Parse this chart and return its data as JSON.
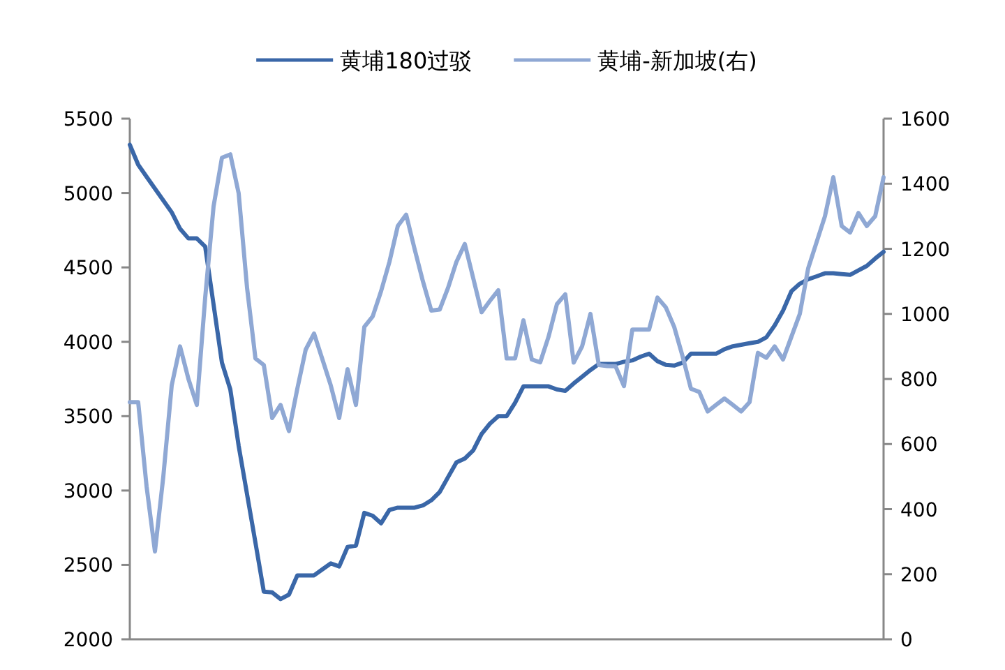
{
  "chart_data": {
    "type": "line",
    "categories": [
      null,
      null,
      null,
      null,
      null,
      null,
      null,
      null,
      null,
      null,
      null,
      null,
      null,
      null,
      null,
      null,
      null,
      null,
      null,
      null,
      null,
      null,
      null,
      null,
      null,
      null,
      null,
      null,
      null,
      null,
      null,
      null,
      null,
      null,
      null,
      null,
      null,
      null,
      null,
      null,
      null,
      null,
      null,
      null,
      null,
      null,
      null,
      null,
      null,
      null,
      null,
      null,
      null,
      null,
      null,
      null,
      null,
      null,
      null,
      null,
      null,
      null,
      null,
      null,
      null,
      null,
      null,
      null,
      null,
      null,
      null,
      null,
      null,
      null,
      null,
      null,
      null,
      null,
      null,
      null,
      null,
      null,
      null,
      null,
      null,
      null,
      null,
      null,
      null,
      null,
      null
    ],
    "series": [
      {
        "name": "黄埔180过驳",
        "color": "#3a67a8",
        "values": [
          5325,
          5190,
          5110,
          5030,
          4950,
          4870,
          4760,
          4695,
          4695,
          4640,
          4250,
          3860,
          3680,
          3300,
          2975,
          2650,
          2320,
          2315,
          2270,
          2300,
          2430,
          2430,
          2430,
          2470,
          2510,
          2490,
          2620,
          2630,
          2850,
          2830,
          2780,
          2870,
          2885,
          2885,
          2885,
          2900,
          2935,
          2990,
          3090,
          3190,
          3215,
          3270,
          3380,
          3450,
          3500,
          3500,
          3590,
          3700,
          3700,
          3700,
          3700,
          3680,
          3670,
          3720,
          3765,
          3810,
          3850,
          3850,
          3850,
          3865,
          3875,
          3900,
          3920,
          3870,
          3845,
          3840,
          3860,
          3920,
          3920,
          3920,
          3920,
          3950,
          3970,
          3980,
          3990,
          4000,
          4030,
          4110,
          4210,
          4340,
          4390,
          4420,
          4440,
          4460,
          4460,
          4455,
          4450,
          4480,
          4510,
          4560,
          4605
        ]
      },
      {
        "name": "黄埔-新加坡(右)",
        "color": "#8fa8d4",
        "axis": "y2",
        "values": [
          729,
          729,
          470,
          270,
          500,
          780,
          900,
          800,
          720,
          1050,
          1330,
          1480,
          1490,
          1370,
          1080,
          863,
          843,
          680,
          720,
          640,
          770,
          890,
          940,
          860,
          780,
          680,
          830,
          720,
          960,
          992,
          1070,
          1160,
          1270,
          1305,
          1200,
          1100,
          1010,
          1013,
          1080,
          1160,
          1215,
          1110,
          1005,
          1040,
          1073,
          863,
          863,
          980,
          860,
          851,
          930,
          1030,
          1060,
          850,
          900,
          1000,
          843,
          840,
          839,
          778,
          952,
          952,
          952,
          1050,
          1020,
          960,
          870,
          770,
          760,
          700,
          720,
          740,
          720,
          700,
          729,
          880,
          865,
          900,
          860,
          930,
          1000,
          1140,
          1220,
          1300,
          1420,
          1270,
          1250,
          1310,
          1270,
          1300,
          1420
        ]
      }
    ],
    "ylim": [
      2000,
      5500
    ],
    "yticks": [
      2000,
      2500,
      3000,
      3500,
      4000,
      4500,
      5000,
      5500
    ],
    "y2lim": [
      0,
      1600
    ],
    "y2ticks": [
      0,
      200,
      400,
      600,
      800,
      1000,
      1200,
      1400,
      1600
    ],
    "legend": "top"
  }
}
